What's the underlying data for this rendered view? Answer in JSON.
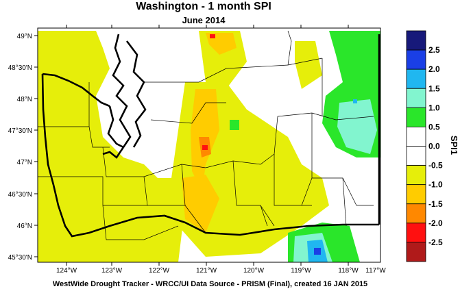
{
  "title": "Washington - 1 month SPI",
  "subtitle": "June 2014",
  "credit": "WestWide Drought Tracker - WRCC/UI  Data Source - PRISM (Final), created 16 JAN 2015",
  "colorbar": {
    "label": "SPI1",
    "levels": [
      "2.5",
      "2.0",
      "1.5",
      "1.0",
      "0.5",
      "0.0",
      "-0.5",
      "-1.0",
      "-1.5",
      "-2.0",
      "-2.5"
    ],
    "colors": [
      "#17197a",
      "#1a3fe6",
      "#20b7f0",
      "#82f5cf",
      "#2ae62a",
      "#ffffff",
      "#ffffff",
      "#e6ee0a",
      "#ffcc00",
      "#ff8800",
      "#ff1010",
      "#b01a1a"
    ]
  },
  "axes": {
    "x_ticks": [
      "124°W",
      "123°W",
      "122°W",
      "121°W",
      "120°W",
      "119°W",
      "118°W",
      "117°W"
    ],
    "y_ticks": [
      "49°N",
      "48°30'N",
      "48°N",
      "47°30'N",
      "47°N",
      "46°30'N",
      "46°N",
      "45°30'N"
    ]
  }
}
